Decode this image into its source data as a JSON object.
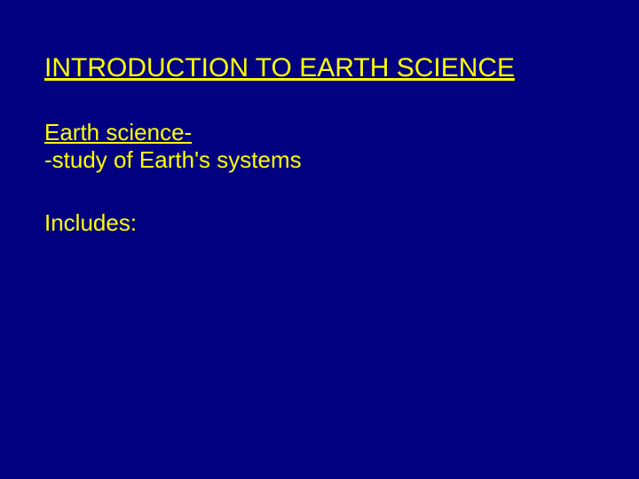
{
  "slide": {
    "title": "INTRODUCTION TO EARTH SCIENCE",
    "term": "Earth science-",
    "definition": "-study of Earth's systems",
    "includes": "Includes:",
    "background_color": "#000080",
    "text_color": "#ffff00",
    "title_fontsize": 30,
    "body_fontsize": 26,
    "font_family": "Arial"
  }
}
